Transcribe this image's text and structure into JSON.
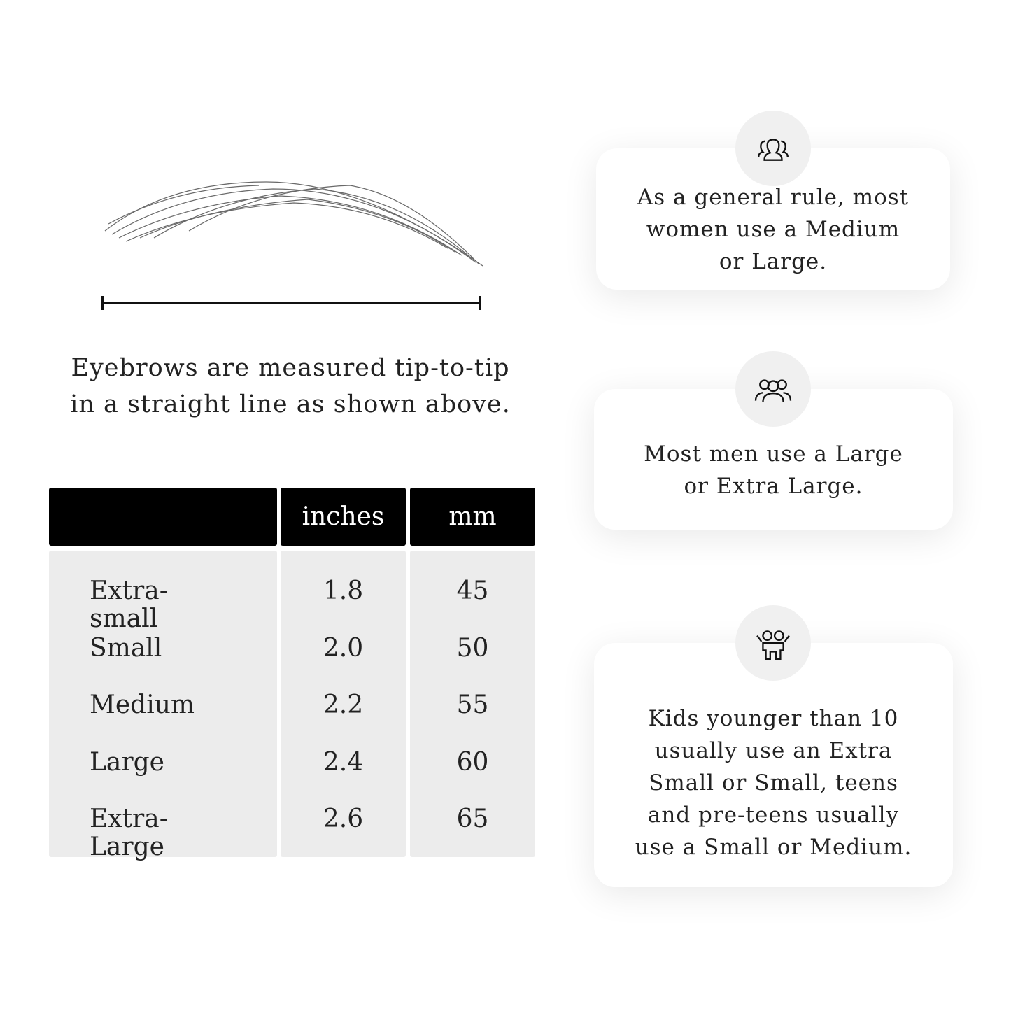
{
  "illustration": {
    "icon": "eyebrow-sketch"
  },
  "caption": "Eyebrows are measured tip-to-tip in a straight line as shown above.",
  "table": {
    "headers": [
      "",
      "inches",
      "mm"
    ],
    "rows": [
      {
        "size": "Extra-small",
        "inches": "1.8",
        "mm": "45"
      },
      {
        "size": "Small",
        "inches": "2.0",
        "mm": "50"
      },
      {
        "size": "Medium",
        "inches": "2.2",
        "mm": "55"
      },
      {
        "size": "Large",
        "inches": "2.4",
        "mm": "60"
      },
      {
        "size": "Extra-Large",
        "inches": "2.6",
        "mm": "65"
      }
    ]
  },
  "cards": [
    {
      "icon": "women-group-icon",
      "text": "As a general rule, most women use a Medium or Large."
    },
    {
      "icon": "men-group-icon",
      "text": "Most men use a Large or Extra Large."
    },
    {
      "icon": "kids-icon",
      "text": "Kids younger than 10 usually use an Extra Small or Small, teens and pre-teens usually use a Small or Medium."
    }
  ]
}
